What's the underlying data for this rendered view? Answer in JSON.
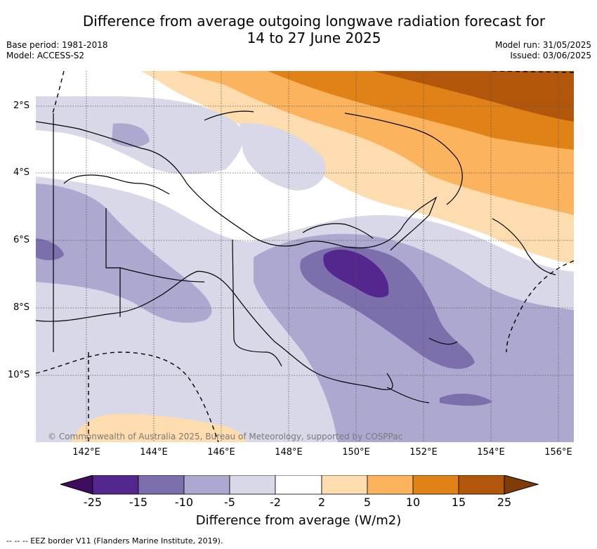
{
  "title_line1": "Difference from average outgoing longwave radiation forecast for",
  "title_line2": "14 to 27 June 2025",
  "meta_left": {
    "base_period": "Base period: 1981-2018",
    "model": "Model: ACCESS-S2"
  },
  "meta_right": {
    "model_run": "Model run: 31/05/2025",
    "issued": "Issued: 03/06/2025"
  },
  "copyright": "© Commonwealth of Australia 2025, Bureau of Meteorology, supported by COSPPac",
  "lat_labels": [
    "2°S",
    "4°S",
    "6°S",
    "8°S",
    "10°S"
  ],
  "lon_labels": [
    "142°E",
    "144°E",
    "146°E",
    "148°E",
    "150°E",
    "152°E",
    "154°E",
    "156°E"
  ],
  "colorbar": {
    "title": "Difference from average (W/m2)",
    "ticks": [
      "-25",
      "-15",
      "-10",
      "-5",
      "-2",
      "2",
      "5",
      "10",
      "15",
      "25"
    ],
    "colors": [
      "#54278f",
      "#7d6fac",
      "#ada8d0",
      "#d8d8e9",
      "#ffffff",
      "#fddcb0",
      "#fbb45d",
      "#e08217",
      "#b1560a"
    ],
    "under_color": "#3f0c5e",
    "over_color": "#7f3b08"
  },
  "footer": "--  --  -- EEZ border V11 (Flanders Marine Institute, 2019)."
}
